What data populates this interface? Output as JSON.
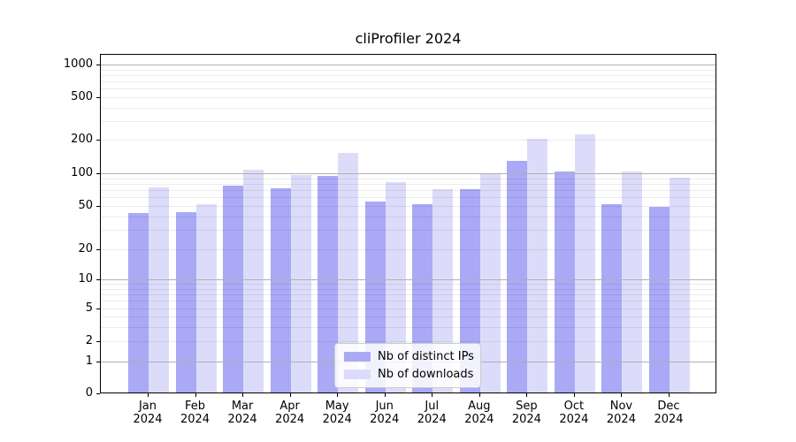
{
  "title": "cliProfiler 2024",
  "chart_data": {
    "type": "bar",
    "title": "cliProfiler 2024",
    "categories": [
      "Jan",
      "Feb",
      "Mar",
      "Apr",
      "May",
      "Jun",
      "Jul",
      "Aug",
      "Sep",
      "Oct",
      "Nov",
      "Dec"
    ],
    "year_label": "2024",
    "series": [
      {
        "name": "Nb of distinct IPs",
        "color": "#a9a9f6",
        "values": [
          42,
          43,
          75,
          72,
          93,
          54,
          51,
          70,
          127,
          102,
          51,
          48
        ]
      },
      {
        "name": "Nb of downloads",
        "color": "#dcdcfa",
        "values": [
          73,
          51,
          105,
          95,
          150,
          82,
          70,
          97,
          200,
          220,
          101,
          90
        ]
      }
    ],
    "xlabel": "",
    "ylabel": "",
    "yscale": "symlog",
    "y_ticks": [
      0,
      1,
      2,
      5,
      10,
      20,
      50,
      100,
      200,
      500,
      1000
    ],
    "ylim": [
      0,
      1000
    ],
    "grid": "both",
    "legend_position": "lower-center"
  },
  "colors": {
    "series_distinct_ips": "#a9a9f6",
    "series_downloads": "#dcdcfa",
    "grid_major": "#b0b0b0",
    "grid_minor": "#ebebeb",
    "spine": "#000000",
    "background": "#ffffff"
  }
}
